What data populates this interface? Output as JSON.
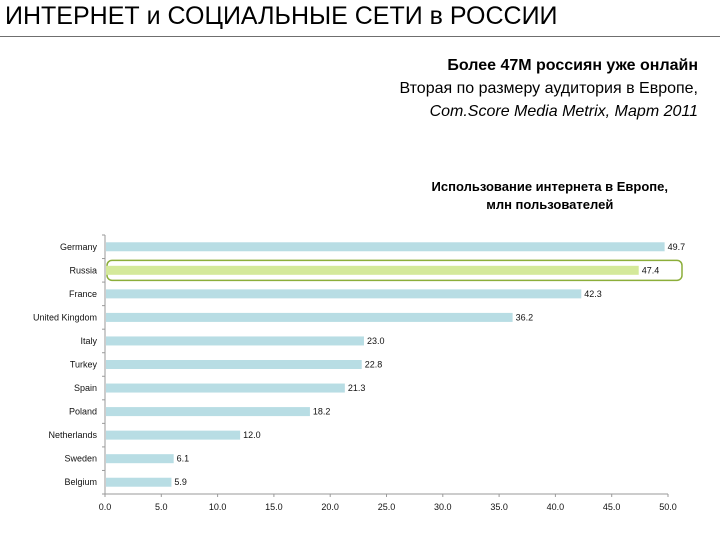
{
  "header": {
    "title": "ИНТЕРНЕТ и СОЦИАЛЬНЫЕ СЕТИ в РОССИИ"
  },
  "subtitle": {
    "line1": "Более 47М россиян уже онлайн",
    "line2": "Вторая по размеру аудитория в Европе,",
    "line3": "Com.Score Media Metrix, Март 2011"
  },
  "colors": {
    "bar": "#b8dde4",
    "highlight_bar": "#d4e99a",
    "highlight_border": "#8cae3a",
    "axis": "#9a9a9a"
  },
  "chart_data": {
    "type": "bar",
    "orientation": "horizontal",
    "title_lines": [
      "Использование интернета в Европе,",
      "млн пользователей"
    ],
    "categories": [
      "Germany",
      "Russia",
      "France",
      "United Kingdom",
      "Italy",
      "Turkey",
      "Spain",
      "Poland",
      "Netherlands",
      "Sweden",
      "Belgium"
    ],
    "values": [
      49.7,
      47.4,
      42.3,
      36.2,
      23.0,
      22.8,
      21.3,
      18.2,
      12.0,
      6.1,
      5.9
    ],
    "value_labels": [
      "49.7",
      "47.4",
      "42.3",
      "36.2",
      "23.0",
      "22.8",
      "21.3",
      "18.2",
      "12.0",
      "6.1",
      "5.9"
    ],
    "highlight": "Russia",
    "xlim": [
      0,
      50
    ],
    "xticks": [
      "0.0",
      "5.0",
      "10.0",
      "15.0",
      "20.0",
      "25.0",
      "30.0",
      "35.0",
      "40.0",
      "45.0",
      "50.0"
    ],
    "grid": false,
    "legend": "none"
  }
}
